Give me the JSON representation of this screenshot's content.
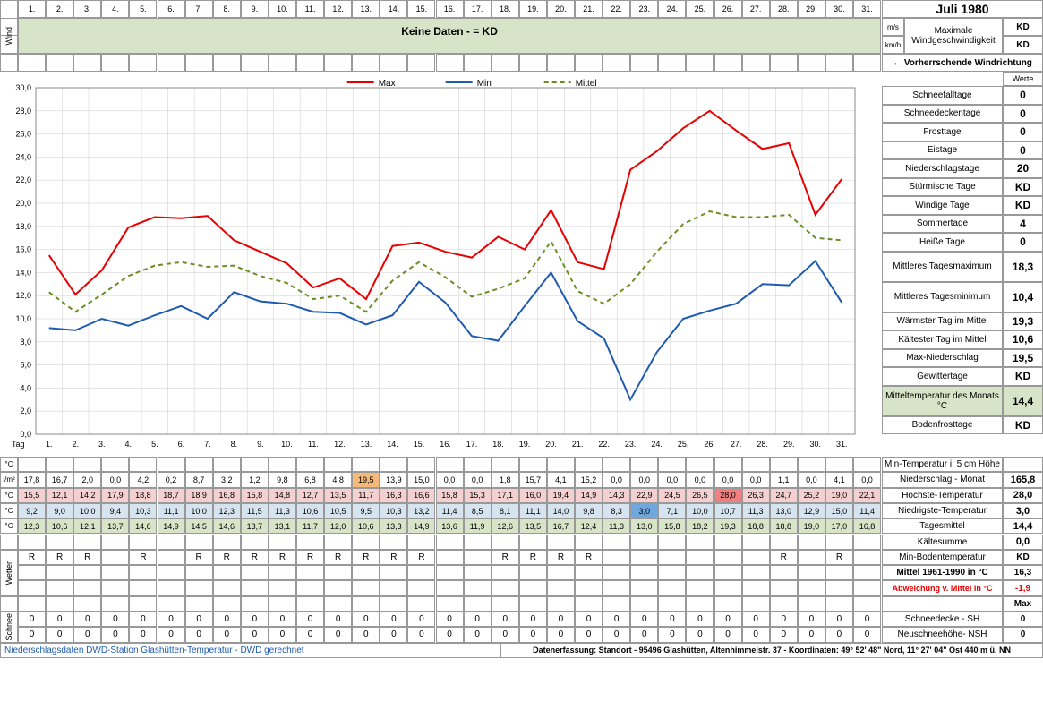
{
  "title": "Juli 1980",
  "wind": {
    "label": "Wind",
    "nodata": "Keine Daten -  = KD",
    "ms": "m/s",
    "kmh": "km/h",
    "max_label": "Maximale Windgeschwindigkeit",
    "kd": "KD",
    "dir": "← Vorherrschende Windrichtung",
    "werte": "Werte"
  },
  "days": [
    "1.",
    "2.",
    "3.",
    "4.",
    "5.",
    "6.",
    "7.",
    "8.",
    "9.",
    "10.",
    "11.",
    "12.",
    "13.",
    "14.",
    "15.",
    "16.",
    "17.",
    "18.",
    "19.",
    "20.",
    "21.",
    "22.",
    "23.",
    "24.",
    "25.",
    "26.",
    "27.",
    "28.",
    "29.",
    "30.",
    "31."
  ],
  "chart": {
    "legend": {
      "max": "Max",
      "min": "Min",
      "mittel": "Mittel"
    },
    "ylim": [
      0,
      30
    ],
    "ytick_step": 2,
    "max": {
      "color": "#e60000",
      "width": 2,
      "dash": "none",
      "values": [
        15.5,
        12.1,
        14.2,
        17.9,
        18.8,
        18.7,
        18.9,
        16.8,
        15.8,
        14.8,
        12.7,
        13.5,
        11.7,
        16.3,
        16.6,
        15.8,
        15.3,
        17.1,
        16.0,
        19.4,
        14.9,
        14.3,
        22.9,
        24.5,
        26.5,
        28.0,
        26.3,
        24.7,
        25.2,
        19.0,
        22.1
      ]
    },
    "min": {
      "color": "#1e5bb0",
      "width": 2,
      "dash": "none",
      "values": [
        9.2,
        9.0,
        10.0,
        9.4,
        10.3,
        11.1,
        10.0,
        12.3,
        11.5,
        11.3,
        10.6,
        10.5,
        9.5,
        10.3,
        13.2,
        11.4,
        8.5,
        8.1,
        11.1,
        14.0,
        9.8,
        8.3,
        3.0,
        7.1,
        10.0,
        10.7,
        11.3,
        13.0,
        12.9,
        15.0,
        11.4
      ]
    },
    "mittel": {
      "color": "#6b8e23",
      "width": 2,
      "dash": "5,4",
      "values": [
        12.3,
        10.6,
        12.1,
        13.7,
        14.6,
        14.9,
        14.5,
        14.6,
        13.7,
        13.1,
        11.7,
        12.0,
        10.6,
        13.3,
        14.9,
        13.6,
        11.9,
        12.6,
        13.5,
        16.7,
        12.4,
        11.3,
        13.0,
        15.8,
        18.2,
        19.3,
        18.8,
        18.8,
        19.0,
        17.0,
        16.8
      ]
    }
  },
  "rows": {
    "tag": "Tag",
    "c": "°C",
    "lm": "l/m²",
    "niederschlag": {
      "label": "Niederschlag - Monat",
      "total": "165,8",
      "values": [
        "17,8",
        "16,7",
        "2,0",
        "0,0",
        "4,2",
        "0,2",
        "8,7",
        "3,2",
        "1,2",
        "9,8",
        "6,8",
        "4,8",
        "19,5",
        "13,9",
        "15,0",
        "0,0",
        "0,0",
        "1,8",
        "15,7",
        "4,1",
        "15,2",
        "0,0",
        "0,0",
        "0,0",
        "0,0",
        "0,0",
        "0,0",
        "1,1",
        "0,0",
        "4,1",
        "0,0"
      ],
      "hi_idx": 12,
      "hi_bg": "#f5b97a"
    },
    "hoechste": {
      "label": "Höchste-Temperatur",
      "total": "28,0",
      "bg": "#f5d0d0",
      "values": [
        "15,5",
        "12,1",
        "14,2",
        "17,9",
        "18,8",
        "18,7",
        "18,9",
        "16,8",
        "15,8",
        "14,8",
        "12,7",
        "13,5",
        "11,7",
        "16,3",
        "16,6",
        "15,8",
        "15,3",
        "17,1",
        "16,0",
        "19,4",
        "14,9",
        "14,3",
        "22,9",
        "24,5",
        "26,5",
        "28,0",
        "26,3",
        "24,7",
        "25,2",
        "19,0",
        "22,1"
      ],
      "hi_idx": 25,
      "hi_bg": "#f08080"
    },
    "niedrigste": {
      "label": "Niedrigste-Temperatur",
      "total": "3,0",
      "bg": "#d6e4f0",
      "values": [
        "9,2",
        "9,0",
        "10,0",
        "9,4",
        "10,3",
        "11,1",
        "10,0",
        "12,3",
        "11,5",
        "11,3",
        "10,6",
        "10,5",
        "9,5",
        "10,3",
        "13,2",
        "11,4",
        "8,5",
        "8,1",
        "11,1",
        "14,0",
        "9,8",
        "8,3",
        "3,0",
        "7,1",
        "10,0",
        "10,7",
        "11,3",
        "13,0",
        "12,9",
        "15,0",
        "11,4"
      ],
      "hi_idx": 22,
      "hi_bg": "#6fa8dc"
    },
    "tagesmittel": {
      "label": "Tagesmittel",
      "total": "14,4",
      "bg": "#d8e4c8",
      "values": [
        "12,3",
        "10,6",
        "12,1",
        "13,7",
        "14,6",
        "14,9",
        "14,5",
        "14,6",
        "13,7",
        "13,1",
        "11,7",
        "12,0",
        "10,6",
        "13,3",
        "14,9",
        "13,6",
        "11,9",
        "12,6",
        "13,5",
        "16,7",
        "12,4",
        "11,3",
        "13,0",
        "15,8",
        "18,2",
        "19,3",
        "18,8",
        "18,8",
        "19,0",
        "17,0",
        "16,8"
      ]
    },
    "min5cm": "Min-Temperatur i. 5 cm Höhe",
    "kaeltesumme": {
      "label": "Kältesumme",
      "total": "0,0"
    },
    "minboden": {
      "label": "Min-Bodentemperatur",
      "total": "KD"
    },
    "wetter": "Wetter",
    "rain": [
      "R",
      "R",
      "R",
      "",
      "R",
      "",
      "R",
      "R",
      "R",
      "R",
      "R",
      "R",
      "R",
      "R",
      "R",
      "",
      "",
      "R",
      "R",
      "R",
      "R",
      "",
      "",
      "",
      "",
      "",
      "",
      "R",
      "",
      "R",
      ""
    ],
    "mittel6190": {
      "label": "Mittel 1961-1990 in °C",
      "total": "16,3"
    },
    "abweichung": {
      "label": "Abweichung v. Mittel in °C",
      "total": "-1,9",
      "color": "#e60000"
    },
    "max": "Max",
    "schnee": "Schnee",
    "sh": {
      "label": "Schneedecke -   SH",
      "total": "0",
      "values": [
        "0",
        "0",
        "0",
        "0",
        "0",
        "0",
        "0",
        "0",
        "0",
        "0",
        "0",
        "0",
        "0",
        "0",
        "0",
        "0",
        "0",
        "0",
        "0",
        "0",
        "0",
        "0",
        "0",
        "0",
        "0",
        "0",
        "0",
        "0",
        "0",
        "0",
        "0"
      ]
    },
    "nsh": {
      "label": "Neuschneehöhe- NSH",
      "total": "0",
      "values": [
        "0",
        "0",
        "0",
        "0",
        "0",
        "0",
        "0",
        "0",
        "0",
        "0",
        "0",
        "0",
        "0",
        "0",
        "0",
        "0",
        "0",
        "0",
        "0",
        "0",
        "0",
        "0",
        "0",
        "0",
        "0",
        "0",
        "0",
        "0",
        "0",
        "0",
        "0"
      ]
    }
  },
  "stats": [
    {
      "label": "Schneefalltage",
      "value": "0"
    },
    {
      "label": "Schneedeckentage",
      "value": "0"
    },
    {
      "label": "Frosttage",
      "value": "0"
    },
    {
      "label": "Eistage",
      "value": "0"
    },
    {
      "label": "Niederschlagstage",
      "value": "20"
    },
    {
      "label": "Stürmische Tage",
      "value": "KD"
    },
    {
      "label": "Windige Tage",
      "value": "KD"
    },
    {
      "label": "Sommertage",
      "value": "4"
    },
    {
      "label": "Heiße Tage",
      "value": "0"
    },
    {
      "label": "Mittleres Tagesmaximum",
      "value": "18,3",
      "tall": true
    },
    {
      "label": "Mittleres Tagesminimum",
      "value": "10,4",
      "tall": true
    },
    {
      "label": "Wärmster Tag im Mittel",
      "value": "19,3"
    },
    {
      "label": "Kältester Tag im Mittel",
      "value": "10,6"
    },
    {
      "label": "Max-Niederschlag",
      "value": "19,5"
    },
    {
      "label": "Gewittertage",
      "value": "KD"
    },
    {
      "label": "Mitteltemperatur des Monats °C",
      "value": "14,4",
      "tall": true,
      "bg": "#d8e4c8"
    },
    {
      "label": "Bodenfrosttage",
      "value": "KD"
    }
  ],
  "footer": {
    "left": "Niederschlagsdaten DWD-Station Glashütten-Temperatur -  DWD gerechnet",
    "right": "Datenerfassung:  Standort -  95496 Glashütten, Altenhimmelstr. 37 - Koordinaten:  49° 52' 48\" Nord,   11° 27' 04\" Ost   440 m ü. NN",
    "left_color": "#1e5bb0"
  }
}
